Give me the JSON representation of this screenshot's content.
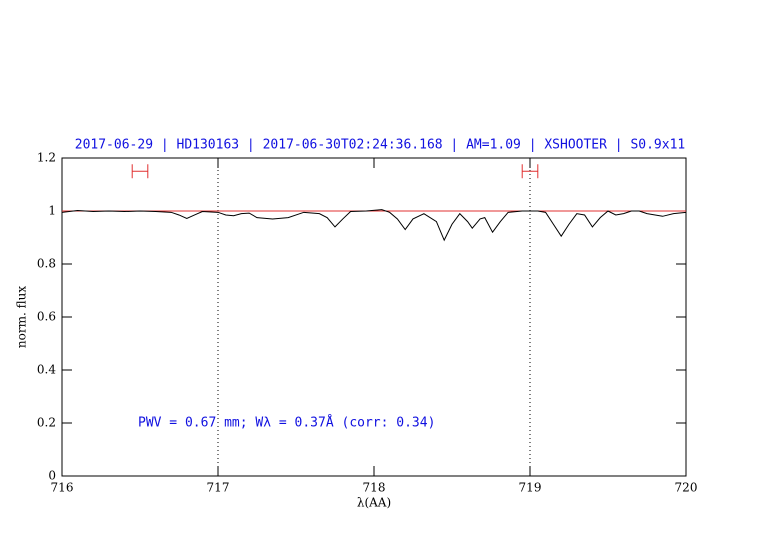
{
  "chart_data": {
    "type": "line",
    "title": "2017-06-29 | HD130163 | 2017-06-30T02:24:36.168 | AM=1.09 | XSHOOTER | S0.9x11",
    "x_label": "λ(AA)",
    "y_label": "norm. flux",
    "annotation": "PWV = 0.67 mm; Wλ = 0.37Å (corr: 0.34)",
    "xlim": [
      716,
      720
    ],
    "xticks": [
      716,
      717,
      718,
      719,
      720
    ],
    "ylim": [
      0,
      1.2
    ],
    "yticks": [
      0,
      0.2,
      0.4,
      0.6,
      0.8,
      1,
      1.2
    ],
    "vlines": [
      717,
      719
    ],
    "hline": 1,
    "hline_color": "#e03030",
    "markers": [
      {
        "x": 716.5,
        "xerr": 0.05,
        "y": 1.15
      },
      {
        "x": 719.0,
        "xerr": 0.05,
        "y": 1.15
      }
    ],
    "marker_color": "#e03030",
    "series": [
      {
        "color": "#000000",
        "x": [
          716.0,
          716.1,
          716.2,
          716.3,
          716.4,
          716.5,
          716.6,
          716.7,
          716.75,
          716.8,
          716.85,
          716.9,
          717.0,
          717.05,
          717.1,
          717.15,
          717.2,
          717.25,
          717.35,
          717.45,
          717.55,
          717.65,
          717.7,
          717.75,
          717.8,
          717.85,
          717.95,
          718.05,
          718.1,
          718.15,
          718.2,
          718.25,
          718.32,
          718.4,
          718.45,
          718.5,
          718.55,
          718.6,
          718.63,
          718.68,
          718.71,
          718.76,
          718.81,
          718.86,
          718.95,
          719.05,
          719.1,
          719.15,
          719.2,
          719.25,
          719.3,
          719.35,
          719.4,
          719.45,
          719.5,
          719.55,
          719.6,
          719.65,
          719.7,
          719.75,
          719.85,
          719.92,
          720.0
        ],
        "values": [
          0.995,
          1.002,
          0.998,
          1.0,
          0.998,
          1.0,
          0.998,
          0.995,
          0.985,
          0.972,
          0.985,
          0.998,
          0.995,
          0.985,
          0.982,
          0.99,
          0.992,
          0.975,
          0.97,
          0.975,
          0.995,
          0.99,
          0.975,
          0.94,
          0.97,
          0.998,
          1.0,
          1.005,
          0.995,
          0.97,
          0.93,
          0.97,
          0.99,
          0.96,
          0.89,
          0.95,
          0.99,
          0.96,
          0.935,
          0.97,
          0.975,
          0.92,
          0.96,
          0.995,
          1.0,
          1.0,
          0.995,
          0.95,
          0.905,
          0.95,
          0.99,
          0.985,
          0.94,
          0.975,
          1.0,
          0.985,
          0.99,
          1.0,
          1.0,
          0.99,
          0.98,
          0.99,
          0.995
        ]
      }
    ]
  }
}
